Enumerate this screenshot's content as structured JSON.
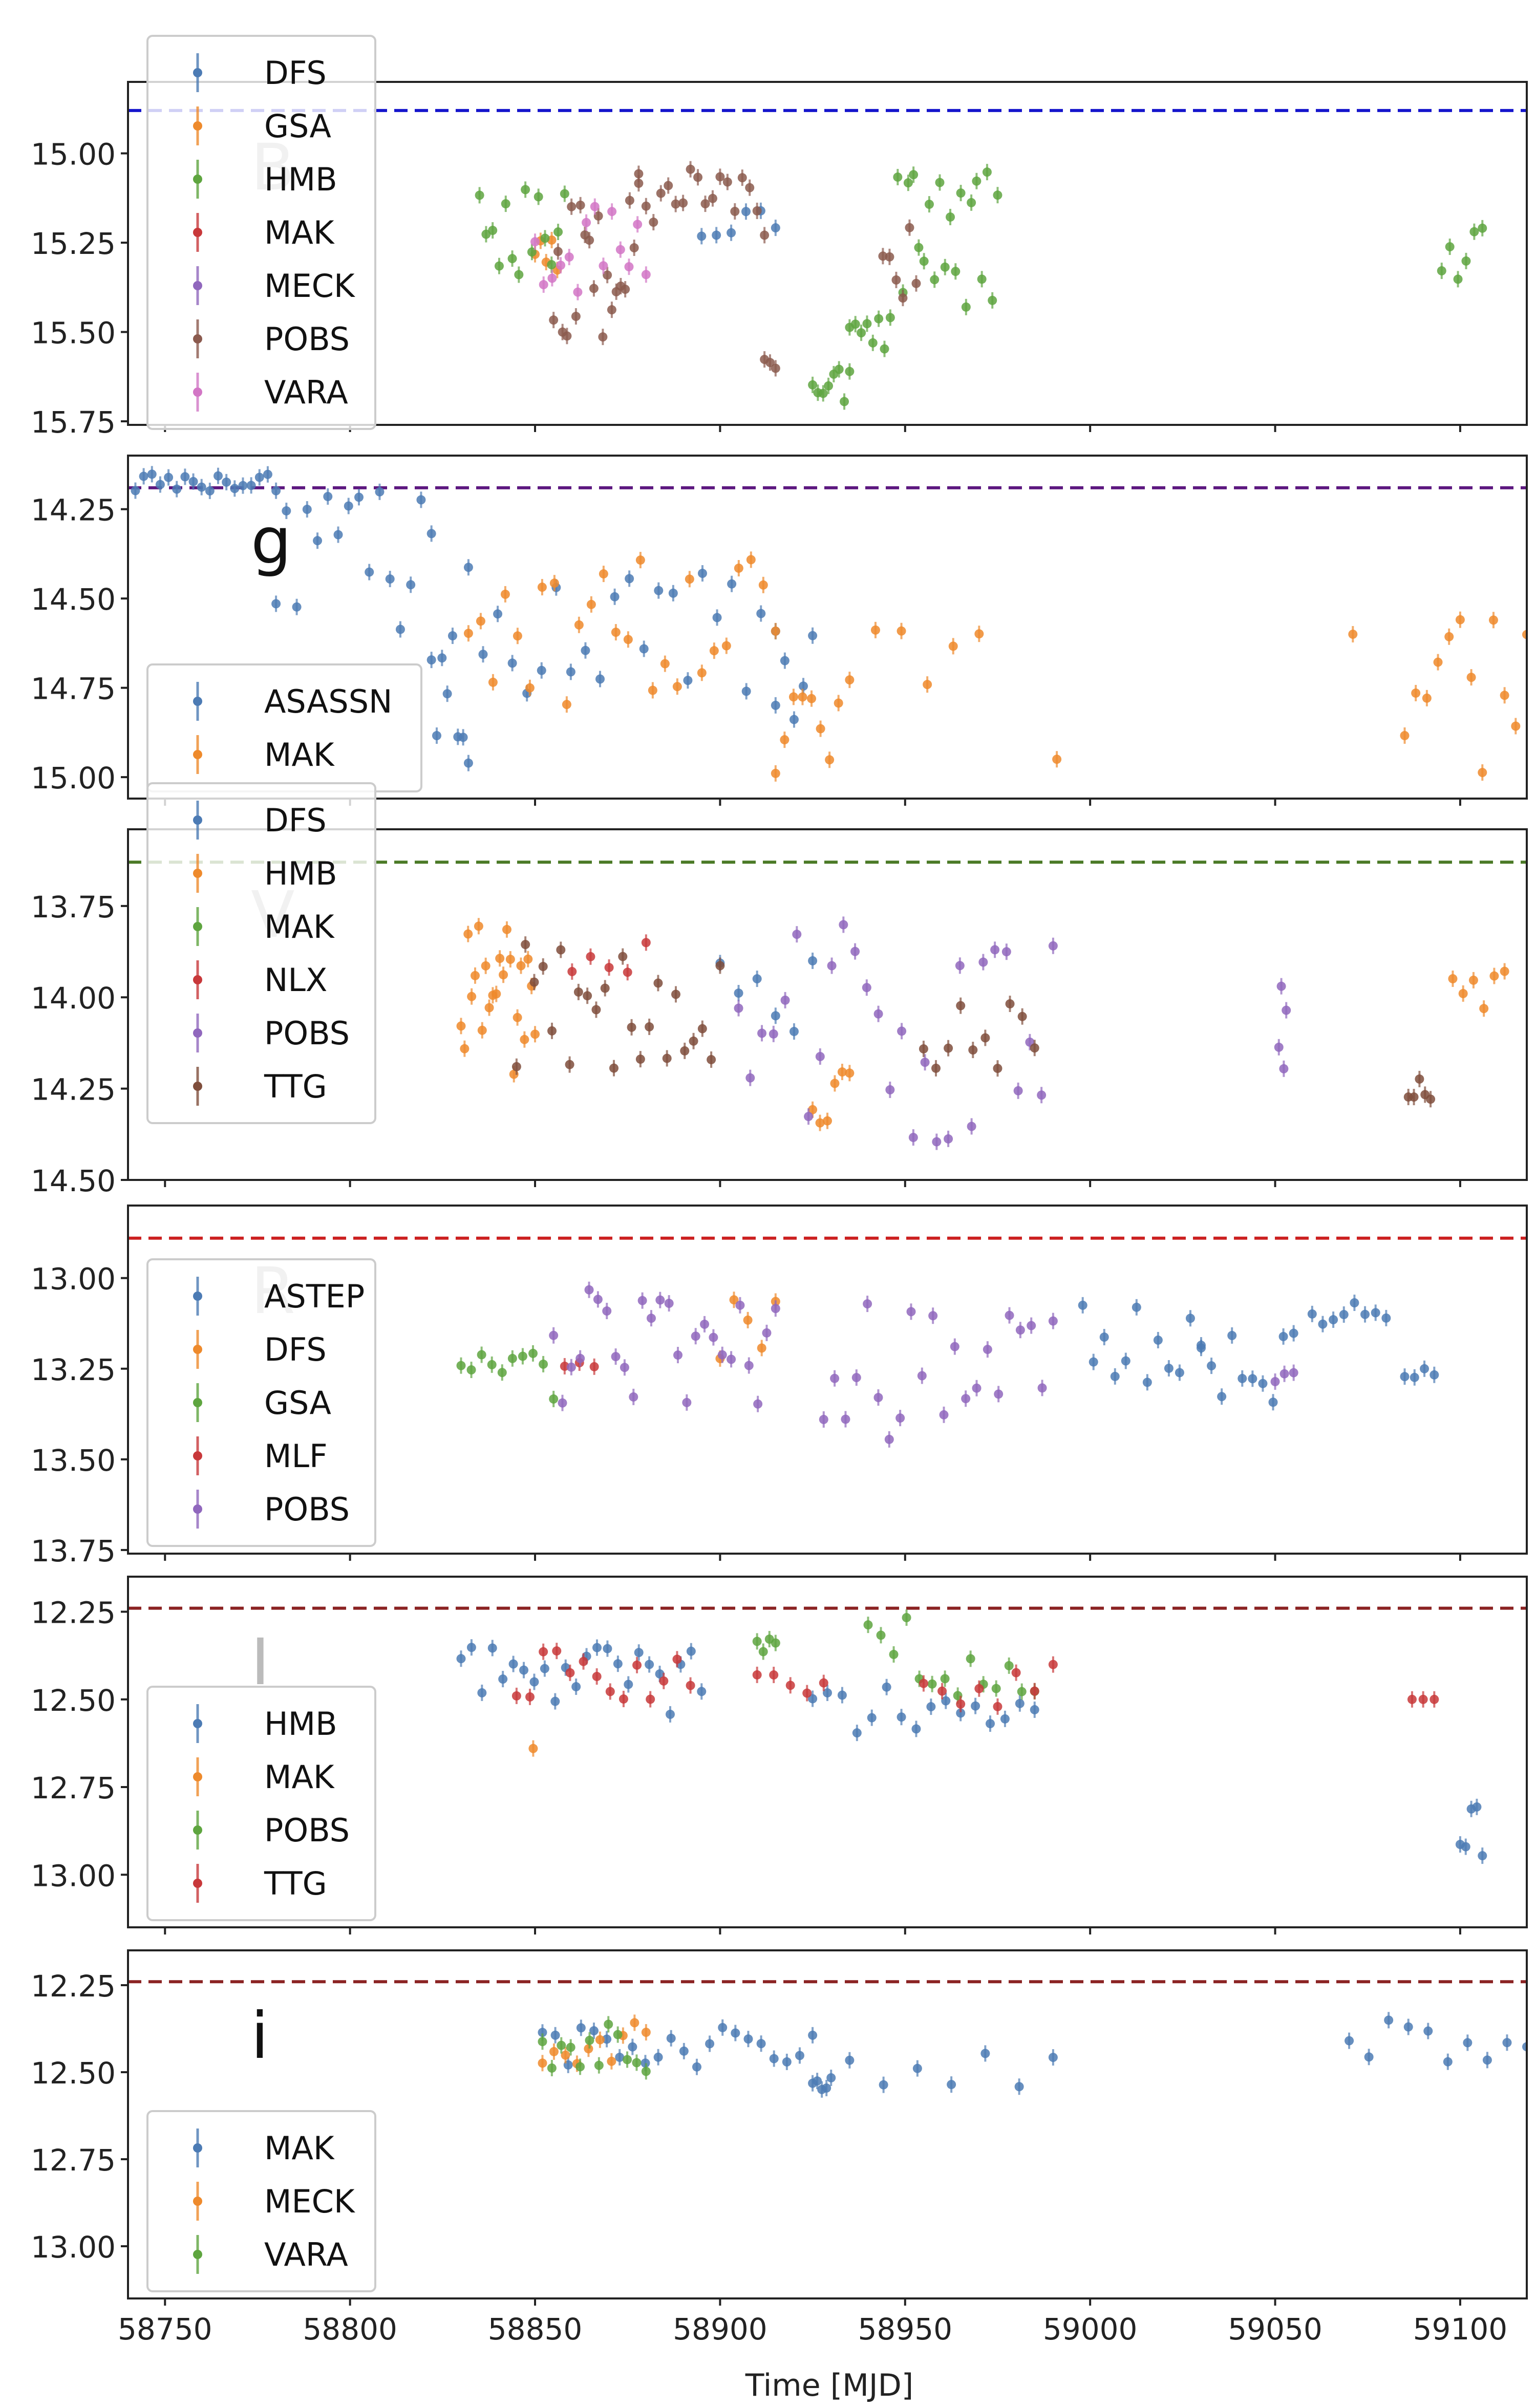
{
  "figure": {
    "x_axis_label": "Time [MJD]",
    "x_ticks": [
      58750,
      58800,
      58850,
      58900,
      58950,
      59000,
      59050,
      59100
    ]
  },
  "chart_data": [
    {
      "type": "scatter",
      "band_label": "B",
      "xlim": [
        58740,
        59118
      ],
      "ylim": [
        15.76,
        14.8
      ],
      "y_inverted": true,
      "y_ticks": [
        15.0,
        15.25,
        15.5,
        15.75
      ],
      "reference_mag": 14.88,
      "reference_color": "#1515cc",
      "legend_position": "upper-left",
      "series": [
        {
          "name": "DFS",
          "color": "#4c7bb4",
          "segments": [
            [
              58895,
              58915,
              15.08,
              15.25,
              6
            ]
          ]
        },
        {
          "name": "GSA",
          "color": "#ee8a2c",
          "segments": [
            [
              58850,
              58856,
              15.22,
              15.35,
              5
            ]
          ]
        },
        {
          "name": "HMB",
          "color": "#5ea53f",
          "segments": [
            [
              58835,
              58858,
              15.1,
              15.35,
              14
            ],
            [
              58925,
              58935,
              15.6,
              15.72,
              8
            ],
            [
              58935,
              58946,
              15.45,
              15.55,
              8
            ],
            [
              58948,
              58975,
              15.05,
              15.45,
              20
            ],
            [
              59095,
              59106,
              15.2,
              15.4,
              6
            ]
          ]
        },
        {
          "name": "MAK",
          "color": "#c8383a",
          "segments": []
        },
        {
          "name": "MECK",
          "color": "#9067bd",
          "segments": []
        },
        {
          "name": "POBS",
          "color": "#8b5a4e",
          "segments": [
            [
              58855,
              58878,
              15.05,
              15.55,
              20
            ],
            [
              58878,
              58912,
              15.0,
              15.25,
              18
            ],
            [
              58912,
              58915,
              15.55,
              15.62,
              3
            ],
            [
              58944,
              58953,
              15.2,
              15.45,
              6
            ]
          ]
        },
        {
          "name": "VARA",
          "color": "#d276c5",
          "segments": [
            [
              58850,
              58880,
              15.1,
              15.45,
              14
            ]
          ]
        }
      ]
    },
    {
      "type": "scatter",
      "band_label": "g",
      "xlim": [
        58740,
        59118
      ],
      "ylim": [
        15.06,
        14.1
      ],
      "y_inverted": true,
      "y_ticks": [
        14.25,
        14.5,
        14.75,
        15.0
      ],
      "reference_mag": 14.19,
      "reference_color": "#5d1880",
      "legend_position": "lower-left",
      "series": [
        {
          "name": "ASASSN",
          "color": "#4c7bb4",
          "segments": [
            [
              58742,
              58780,
              14.15,
              14.2,
              18
            ],
            [
              58780,
              58822,
              14.2,
              14.6,
              16
            ],
            [
              58822,
              58832,
              14.6,
              15.0,
              8
            ],
            [
              58832,
              58915,
              14.4,
              14.8,
              22
            ],
            [
              58915,
              58925,
              14.6,
              14.85,
              5
            ]
          ]
        },
        {
          "name": "MAK",
          "color": "#ee8a2c",
          "segments": [
            [
              58832,
              58915,
              14.35,
              14.8,
              26
            ],
            [
              58915,
              58932,
              14.75,
              15.0,
              8
            ],
            [
              58935,
              58970,
              14.5,
              14.8,
              6
            ],
            [
              58990,
              58992,
              14.95,
              14.95,
              1
            ],
            [
              59070,
              59072,
              14.6,
              14.6,
              1
            ],
            [
              59085,
              59118,
              14.5,
              15.0,
              12
            ]
          ]
        }
      ]
    },
    {
      "type": "scatter",
      "band_label": "V",
      "xlim": [
        58740,
        59118
      ],
      "ylim": [
        14.5,
        13.54
      ],
      "y_inverted": true,
      "y_ticks": [
        13.75,
        14.0,
        14.25,
        14.5
      ],
      "reference_mag": 13.63,
      "reference_color": "#4b7a26",
      "legend_position": "upper-left",
      "series": [
        {
          "name": "DFS",
          "color": "#4c7bb4",
          "segments": [
            [
              58900,
              58925,
              13.9,
              14.1,
              6
            ]
          ]
        },
        {
          "name": "HMB",
          "color": "#ee8a2c",
          "segments": [
            [
              58830,
              58850,
              13.8,
              14.25,
              22
            ],
            [
              58925,
              58935,
              14.2,
              14.35,
              6
            ],
            [
              59098,
              59112,
              13.9,
              14.05,
              6
            ]
          ]
        },
        {
          "name": "MAK",
          "color": "#5ea53f",
          "segments": []
        },
        {
          "name": "NLX",
          "color": "#c8383a",
          "segments": [
            [
              58860,
              58880,
              13.85,
              13.95,
              5
            ]
          ]
        },
        {
          "name": "POBS",
          "color": "#9067bd",
          "segments": [
            [
              58905,
              58990,
              13.8,
              14.4,
              28
            ],
            [
              59051,
              59053,
              13.95,
              14.25,
              4
            ]
          ]
        },
        {
          "name": "TTG",
          "color": "#7f4e3c",
          "segments": [
            [
              58845,
              58900,
              13.85,
              14.2,
              24
            ],
            [
              58955,
              58985,
              14.0,
              14.2,
              10
            ],
            [
              59086,
              59092,
              14.22,
              14.28,
              5
            ]
          ]
        }
      ]
    },
    {
      "type": "scatter",
      "band_label": "R",
      "xlim": [
        58740,
        59118
      ],
      "ylim": [
        13.76,
        12.8
      ],
      "y_inverted": true,
      "y_ticks": [
        13.0,
        13.25,
        13.5,
        13.75
      ],
      "reference_mag": 12.89,
      "reference_color": "#cc2020",
      "legend_position": "left",
      "series": [
        {
          "name": "ASTEP",
          "color": "#4c7bb4",
          "segments": [
            [
              58998,
              59030,
              13.05,
              13.3,
              12
            ],
            [
              59030,
              59055,
              13.1,
              13.35,
              10
            ],
            [
              59060,
              59080,
              13.05,
              13.15,
              8
            ],
            [
              59085,
              59093,
              13.25,
              13.3,
              4
            ]
          ]
        },
        {
          "name": "DFS",
          "color": "#ee8a2c",
          "segments": [
            [
              58900,
              58915,
              13.05,
              13.3,
              5
            ]
          ]
        },
        {
          "name": "GSA",
          "color": "#5ea53f",
          "segments": [
            [
              58830,
              58855,
              13.2,
              13.35,
              10
            ]
          ]
        },
        {
          "name": "MLF",
          "color": "#c8383a",
          "segments": [
            [
              58858,
              58866,
              13.2,
              13.25,
              3
            ]
          ]
        },
        {
          "name": "POBS",
          "color": "#9067bd",
          "segments": [
            [
              58855,
              58915,
              13.0,
              13.35,
              26
            ],
            [
              58928,
              58990,
              13.05,
              13.45,
              22
            ],
            [
              59050,
              59055,
              13.2,
              13.3,
              3
            ]
          ]
        }
      ]
    },
    {
      "type": "scatter",
      "band_label": "I",
      "xlim": [
        58740,
        59118
      ],
      "ylim": [
        13.15,
        12.15
      ],
      "y_inverted": true,
      "y_ticks": [
        12.25,
        12.5,
        12.75,
        13.0
      ],
      "reference_mag": 12.24,
      "reference_color": "#8b2323",
      "legend_position": "lower-left",
      "series": [
        {
          "name": "HMB",
          "color": "#4c7bb4",
          "segments": [
            [
              58830,
              58895,
              12.35,
              12.55,
              24
            ],
            [
              58925,
              58985,
              12.45,
              12.6,
              16
            ],
            [
              59100,
              59106,
              12.8,
              12.95,
              5
            ]
          ]
        },
        {
          "name": "MAK",
          "color": "#ee8a2c",
          "segments": [
            [
              58849,
              58850,
              12.64,
              12.64,
              1
            ]
          ]
        },
        {
          "name": "POBS",
          "color": "#5ea53f",
          "segments": [
            [
              58910,
              58915,
              12.3,
              12.4,
              4
            ],
            [
              58940,
              58985,
              12.25,
              12.5,
              14
            ]
          ]
        },
        {
          "name": "TTG",
          "color": "#c8383a",
          "segments": [
            [
              58845,
              58892,
              12.35,
              12.5,
              14
            ],
            [
              58910,
              58928,
              12.4,
              12.5,
              5
            ],
            [
              58955,
              58990,
              12.4,
              12.55,
              8
            ],
            [
              59087,
              59093,
              12.5,
              12.5,
              3
            ]
          ]
        }
      ]
    },
    {
      "type": "scatter",
      "band_label": "i",
      "xlim": [
        58740,
        59118
      ],
      "ylim": [
        13.15,
        12.15
      ],
      "y_inverted": true,
      "y_ticks": [
        12.25,
        12.5,
        12.75,
        13.0
      ],
      "reference_mag": 12.24,
      "reference_color": "#8b2323",
      "legend_position": "lower-left",
      "series": [
        {
          "name": "MAK",
          "color": "#4c7bb4",
          "segments": [
            [
              58852,
              58925,
              12.35,
              12.5,
              22
            ],
            [
              58925,
              58930,
              12.5,
              12.55,
              5
            ],
            [
              58935,
              58990,
              12.4,
              12.55,
              7
            ],
            [
              59070,
              59118,
              12.35,
              12.5,
              10
            ]
          ]
        },
        {
          "name": "MECK",
          "color": "#ee8a2c",
          "segments": [
            [
              58852,
              58880,
              12.35,
              12.5,
              10
            ]
          ]
        },
        {
          "name": "VARA",
          "color": "#5ea53f",
          "segments": [
            [
              58852,
              58880,
              12.35,
              12.5,
              12
            ]
          ]
        }
      ]
    }
  ]
}
